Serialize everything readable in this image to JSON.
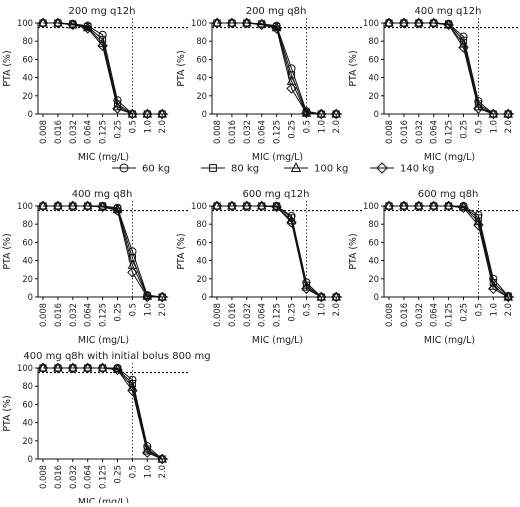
{
  "chart_data": {
    "type": "line",
    "categories": [
      "0.008",
      "0.016",
      "0.032",
      "0.064",
      "0.125",
      "0.25",
      "0.5",
      "1.0",
      "2.0"
    ],
    "xlabel": "MIC (mg/L)",
    "ylabel": "PTA (%)",
    "yticks": [
      "0",
      "20",
      "40",
      "60",
      "80",
      "100"
    ],
    "ylim": [
      0,
      100
    ],
    "threshold": 95,
    "legend": [
      {
        "label": "60 kg",
        "marker": "circle"
      },
      {
        "label": "80 kg",
        "marker": "square"
      },
      {
        "label": "100 kg",
        "marker": "triangle"
      },
      {
        "label": "140 kg",
        "marker": "diamond"
      }
    ],
    "panels": [
      {
        "title": "200 mg q12h",
        "cutoff": "0.5",
        "series": [
          {
            "name": "60 kg",
            "values": [
              100,
              100,
              99,
              97,
              87,
              15,
              0,
              0,
              0
            ]
          },
          {
            "name": "80 kg",
            "values": [
              100,
              100,
              99,
              96,
              82,
              11,
              0,
              0,
              0
            ]
          },
          {
            "name": "100 kg",
            "values": [
              100,
              100,
              98,
              95,
              78,
              8,
              0,
              0,
              0
            ]
          },
          {
            "name": "140 kg",
            "values": [
              100,
              100,
              98,
              94,
              75,
              6,
              0,
              0,
              0
            ]
          }
        ]
      },
      {
        "title": "200 mg q8h",
        "cutoff": "0.5",
        "series": [
          {
            "name": "60 kg",
            "values": [
              100,
              100,
              100,
              99,
              97,
              50,
              3,
              0,
              0
            ]
          },
          {
            "name": "80 kg",
            "values": [
              100,
              100,
              100,
              99,
              96,
              43,
              2,
              0,
              0
            ]
          },
          {
            "name": "100 kg",
            "values": [
              100,
              100,
              100,
              99,
              95,
              36,
              1,
              0,
              0
            ]
          },
          {
            "name": "140 kg",
            "values": [
              100,
              100,
              100,
              98,
              94,
              28,
              1,
              0,
              0
            ]
          }
        ]
      },
      {
        "title": "400 mg q12h",
        "cutoff": "0.5",
        "series": [
          {
            "name": "60 kg",
            "values": [
              100,
              100,
              100,
              100,
              99,
              85,
              14,
              0,
              0
            ]
          },
          {
            "name": "80 kg",
            "values": [
              100,
              100,
              100,
              100,
              99,
              81,
              11,
              0,
              0
            ]
          },
          {
            "name": "100 kg",
            "values": [
              100,
              100,
              100,
              100,
              98,
              77,
              8,
              0,
              0
            ]
          },
          {
            "name": "140 kg",
            "values": [
              100,
              100,
              100,
              100,
              98,
              73,
              6,
              0,
              0
            ]
          }
        ]
      },
      {
        "title": "400 mg q8h",
        "cutoff": "0.5",
        "series": [
          {
            "name": "60 kg",
            "values": [
              100,
              100,
              100,
              100,
              100,
              98,
              50,
              2,
              0
            ]
          },
          {
            "name": "80 kg",
            "values": [
              100,
              100,
              100,
              100,
              100,
              97,
              43,
              1,
              0
            ]
          },
          {
            "name": "100 kg",
            "values": [
              100,
              100,
              100,
              100,
              99,
              96,
              35,
              1,
              0
            ]
          },
          {
            "name": "140 kg",
            "values": [
              100,
              100,
              100,
              100,
              99,
              95,
              27,
              0,
              0
            ]
          }
        ]
      },
      {
        "title": "600 mg q12h",
        "cutoff": "0.5",
        "series": [
          {
            "name": "60 kg",
            "values": [
              100,
              100,
              100,
              100,
              100,
              89,
              16,
              0,
              0
            ]
          },
          {
            "name": "80 kg",
            "values": [
              100,
              100,
              100,
              100,
              100,
              87,
              13,
              0,
              0
            ]
          },
          {
            "name": "100 kg",
            "values": [
              100,
              100,
              100,
              100,
              99,
              84,
              11,
              0,
              0
            ]
          },
          {
            "name": "140 kg",
            "values": [
              100,
              100,
              100,
              100,
              99,
              82,
              9,
              0,
              0
            ]
          }
        ]
      },
      {
        "title": "600 mg q8h",
        "cutoff": "0.5",
        "series": [
          {
            "name": "60 kg",
            "values": [
              100,
              100,
              100,
              100,
              100,
              100,
              90,
              20,
              1
            ]
          },
          {
            "name": "80 kg",
            "values": [
              100,
              100,
              100,
              100,
              100,
              99,
              87,
              16,
              1
            ]
          },
          {
            "name": "100 kg",
            "values": [
              100,
              100,
              100,
              100,
              100,
              99,
              83,
              12,
              0
            ]
          },
          {
            "name": "140 kg",
            "values": [
              100,
              100,
              100,
              100,
              100,
              98,
              79,
              9,
              0
            ]
          }
        ]
      },
      {
        "title": "400 mg q8h with initial bolus 800 mg",
        "cutoff": "0.5",
        "series": [
          {
            "name": "60 kg",
            "values": [
              100,
              100,
              100,
              100,
              100,
              100,
              87,
              14,
              0
            ]
          },
          {
            "name": "80 kg",
            "values": [
              100,
              100,
              100,
              100,
              100,
              99,
              83,
              11,
              0
            ]
          },
          {
            "name": "100 kg",
            "values": [
              100,
              100,
              100,
              100,
              100,
              99,
              79,
              9,
              0
            ]
          },
          {
            "name": "140 kg",
            "values": [
              100,
              100,
              100,
              100,
              100,
              98,
              75,
              7,
              0
            ]
          }
        ]
      }
    ]
  }
}
